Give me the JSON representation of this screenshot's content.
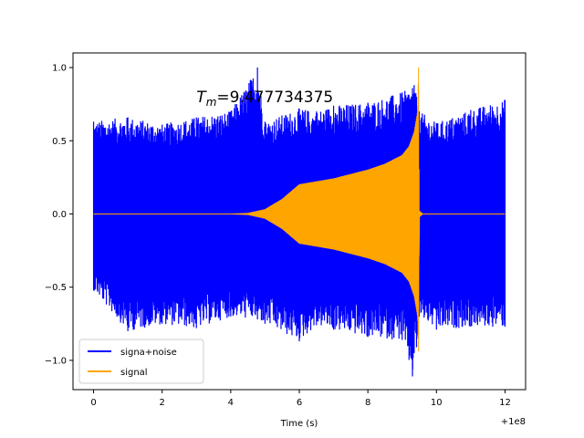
{
  "chart_data": {
    "type": "line",
    "title": "",
    "xlabel": "Time (s)",
    "ylabel": "",
    "x_offset_label": "+1e8",
    "xlim": [
      -0.6,
      12.6
    ],
    "ylim": [
      -1.2,
      1.1
    ],
    "xticks": [
      0,
      2,
      4,
      6,
      8,
      10,
      12
    ],
    "xtick_labels": [
      "0",
      "2",
      "4",
      "6",
      "8",
      "10",
      "12"
    ],
    "yticks": [
      -1.0,
      -0.5,
      0.0,
      0.5,
      1.0
    ],
    "ytick_labels": [
      "−1.0",
      "−0.5",
      "0.0",
      "0.5",
      "1.0"
    ],
    "grid": false,
    "legend_position": "lower-left",
    "annotation": {
      "symbol": "T",
      "subscript": "m",
      "text": "=9.477734375",
      "x": 3.0,
      "y": 0.8
    },
    "series": [
      {
        "name": "signa+noise",
        "color": "#0000ff",
        "envelope": {
          "x": [
            0.0,
            1.0,
            2.0,
            3.0,
            4.0,
            4.78,
            5.0,
            6.0,
            6.5,
            7.0,
            8.0,
            9.0,
            9.3,
            9.35,
            9.42,
            9.5,
            10.0,
            11.0,
            12.0
          ],
          "upper": [
            0.63,
            0.66,
            0.61,
            0.66,
            0.7,
            1.0,
            0.63,
            0.72,
            0.7,
            0.74,
            0.76,
            0.83,
            0.86,
            0.88,
            0.8,
            0.7,
            0.62,
            0.71,
            0.78
          ],
          "lower": [
            -0.52,
            -0.8,
            -0.75,
            -0.78,
            -0.7,
            -0.72,
            -0.75,
            -0.87,
            -0.76,
            -0.79,
            -0.84,
            -0.86,
            -1.11,
            -0.95,
            -0.91,
            -0.7,
            -0.79,
            -0.77,
            -0.77
          ]
        }
      },
      {
        "name": "signal",
        "color": "#ffa500",
        "envelope": {
          "x": [
            0.0,
            4.0,
            4.5,
            5.0,
            5.5,
            6.0,
            6.5,
            7.0,
            7.5,
            8.0,
            8.5,
            9.0,
            9.2,
            9.35,
            9.45,
            9.477,
            9.5,
            9.6,
            12.0
          ],
          "upper": [
            0.0,
            0.0,
            0.004,
            0.03,
            0.1,
            0.2,
            0.22,
            0.24,
            0.27,
            0.3,
            0.34,
            0.4,
            0.46,
            0.56,
            0.7,
            1.0,
            0.02,
            0.0,
            0.0
          ],
          "lower": [
            0.0,
            0.0,
            -0.004,
            -0.03,
            -0.1,
            -0.2,
            -0.22,
            -0.24,
            -0.27,
            -0.3,
            -0.34,
            -0.4,
            -0.46,
            -0.56,
            -0.7,
            -0.94,
            -0.02,
            0.0,
            0.0
          ]
        }
      }
    ]
  }
}
